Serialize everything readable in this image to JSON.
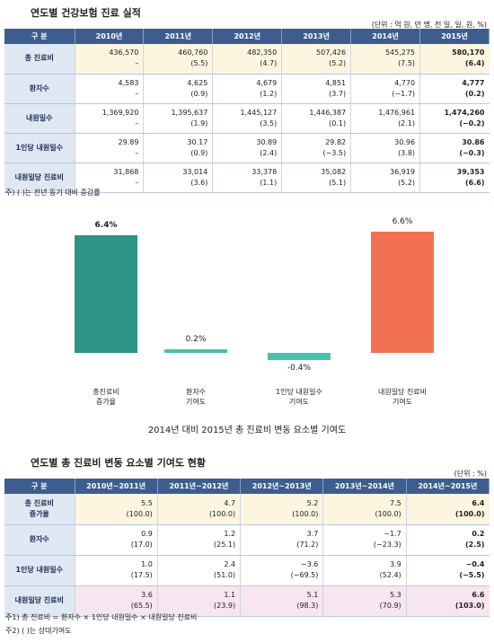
{
  "table1": {
    "title": "연도별 건강보험 진료 실적",
    "unit": "(단위 : 억 원, 만 명, 천 일, 일, 원, %)",
    "headers": [
      "구 분",
      "2010년",
      "2011년",
      "2012년",
      "2013년",
      "2014년",
      "2015년"
    ],
    "rows": [
      {
        "label": "총 진료비",
        "cells": [
          [
            "436,570",
            "–"
          ],
          [
            "460,760",
            "(5.5)"
          ],
          [
            "482,350",
            "(4.7)"
          ],
          [
            "507,426",
            "(5.2)"
          ],
          [
            "545,275",
            "(7.5)"
          ],
          [
            "580,170",
            "(6.4)"
          ]
        ]
      },
      {
        "label": "환자수",
        "cells": [
          [
            "4,583",
            "–"
          ],
          [
            "4,625",
            "(0.9)"
          ],
          [
            "4,679",
            "(1.2)"
          ],
          [
            "4,851",
            "(3.7)"
          ],
          [
            "4,770",
            "(−1.7)"
          ],
          [
            "4,777",
            "(0.2)"
          ]
        ]
      },
      {
        "label": "내원일수",
        "cells": [
          [
            "1,369,920",
            "–"
          ],
          [
            "1,395,637",
            "(1.9)"
          ],
          [
            "1,445,127",
            "(3.5)"
          ],
          [
            "1,446,387",
            "(0.1)"
          ],
          [
            "1,476,961",
            "(2.1)"
          ],
          [
            "1,474,260",
            "(−0.2)"
          ]
        ]
      },
      {
        "label": "1인당 내원일수",
        "cells": [
          [
            "29.89",
            "–"
          ],
          [
            "30.17",
            "(0.9)"
          ],
          [
            "30.89",
            "(2.4)"
          ],
          [
            "29.82",
            "(−3.5)"
          ],
          [
            "30.96",
            "(3.8)"
          ],
          [
            "30.86",
            "(−0.3)"
          ]
        ]
      },
      {
        "label": "내원일당 진료비",
        "cells": [
          [
            "31,868",
            "–"
          ],
          [
            "33,014",
            "(3.6)"
          ],
          [
            "33,378",
            "(1.1)"
          ],
          [
            "35,082",
            "(5.1)"
          ],
          [
            "36,919",
            "(5.2)"
          ],
          [
            "39,353",
            "(6.6)"
          ]
        ]
      }
    ],
    "note": "주) ( )는 전년 동기 대비 증감률"
  },
  "chart_data": {
    "type": "bar",
    "title": "2014년 대비 2015년 총 진료비 변동 요소별 기여도",
    "categories": [
      "총진료비\n증가율",
      "환자수\n기여도",
      "1인당 내원일수\n기여도",
      "내원일당 진료비\n기여도"
    ],
    "values": [
      6.4,
      0.2,
      -0.4,
      6.6
    ],
    "value_labels": [
      "6.4%",
      "0.2%",
      "-0.4%",
      "6.6%"
    ],
    "colors": [
      "#2b9486",
      "#45c2ad",
      "#45c2ad",
      "#f27152"
    ]
  },
  "table2": {
    "title": "연도별 총 진료비 변동 요소별 기여도 현황",
    "unit": "(단위 : %)",
    "headers": [
      "구 분",
      "2010년~2011년",
      "2011년~2012년",
      "2012년~2013년",
      "2013년~2014년",
      "2014년~2015년"
    ],
    "rows": [
      {
        "label": "총 진료비\n증가율",
        "cells": [
          [
            "5.5",
            "(100.0)"
          ],
          [
            "4.7",
            "(100.0)"
          ],
          [
            "5.2",
            "(100.0)"
          ],
          [
            "7.5",
            "(100.0)"
          ],
          [
            "6.4",
            "(100.0)"
          ]
        ]
      },
      {
        "label": "환자수",
        "cells": [
          [
            "0.9",
            "(17.0)"
          ],
          [
            "1.2",
            "(25.1)"
          ],
          [
            "3.7",
            "(71.2)"
          ],
          [
            "−1.7",
            "(−23.3)"
          ],
          [
            "0.2",
            "(2.5)"
          ]
        ]
      },
      {
        "label": "1인당 내원일수",
        "cells": [
          [
            "1.0",
            "(17.5)"
          ],
          [
            "2.4",
            "(51.0)"
          ],
          [
            "−3.6",
            "(−69.5)"
          ],
          [
            "3.9",
            "(52.4)"
          ],
          [
            "−0.4",
            "(−5.5)"
          ]
        ]
      },
      {
        "label": "내원일당 진료비",
        "cells": [
          [
            "3.6",
            "(65.5)"
          ],
          [
            "1.1",
            "(23.9)"
          ],
          [
            "5.1",
            "(98.3)"
          ],
          [
            "5.3",
            "(70.9)"
          ],
          [
            "6.6",
            "(103.0)"
          ]
        ]
      }
    ],
    "notes": [
      "주1) 총 진료비 = 환자수 × 1인당 내원일수 × 내원일당 진료비",
      "주2) ( )는 상대기여도"
    ]
  }
}
